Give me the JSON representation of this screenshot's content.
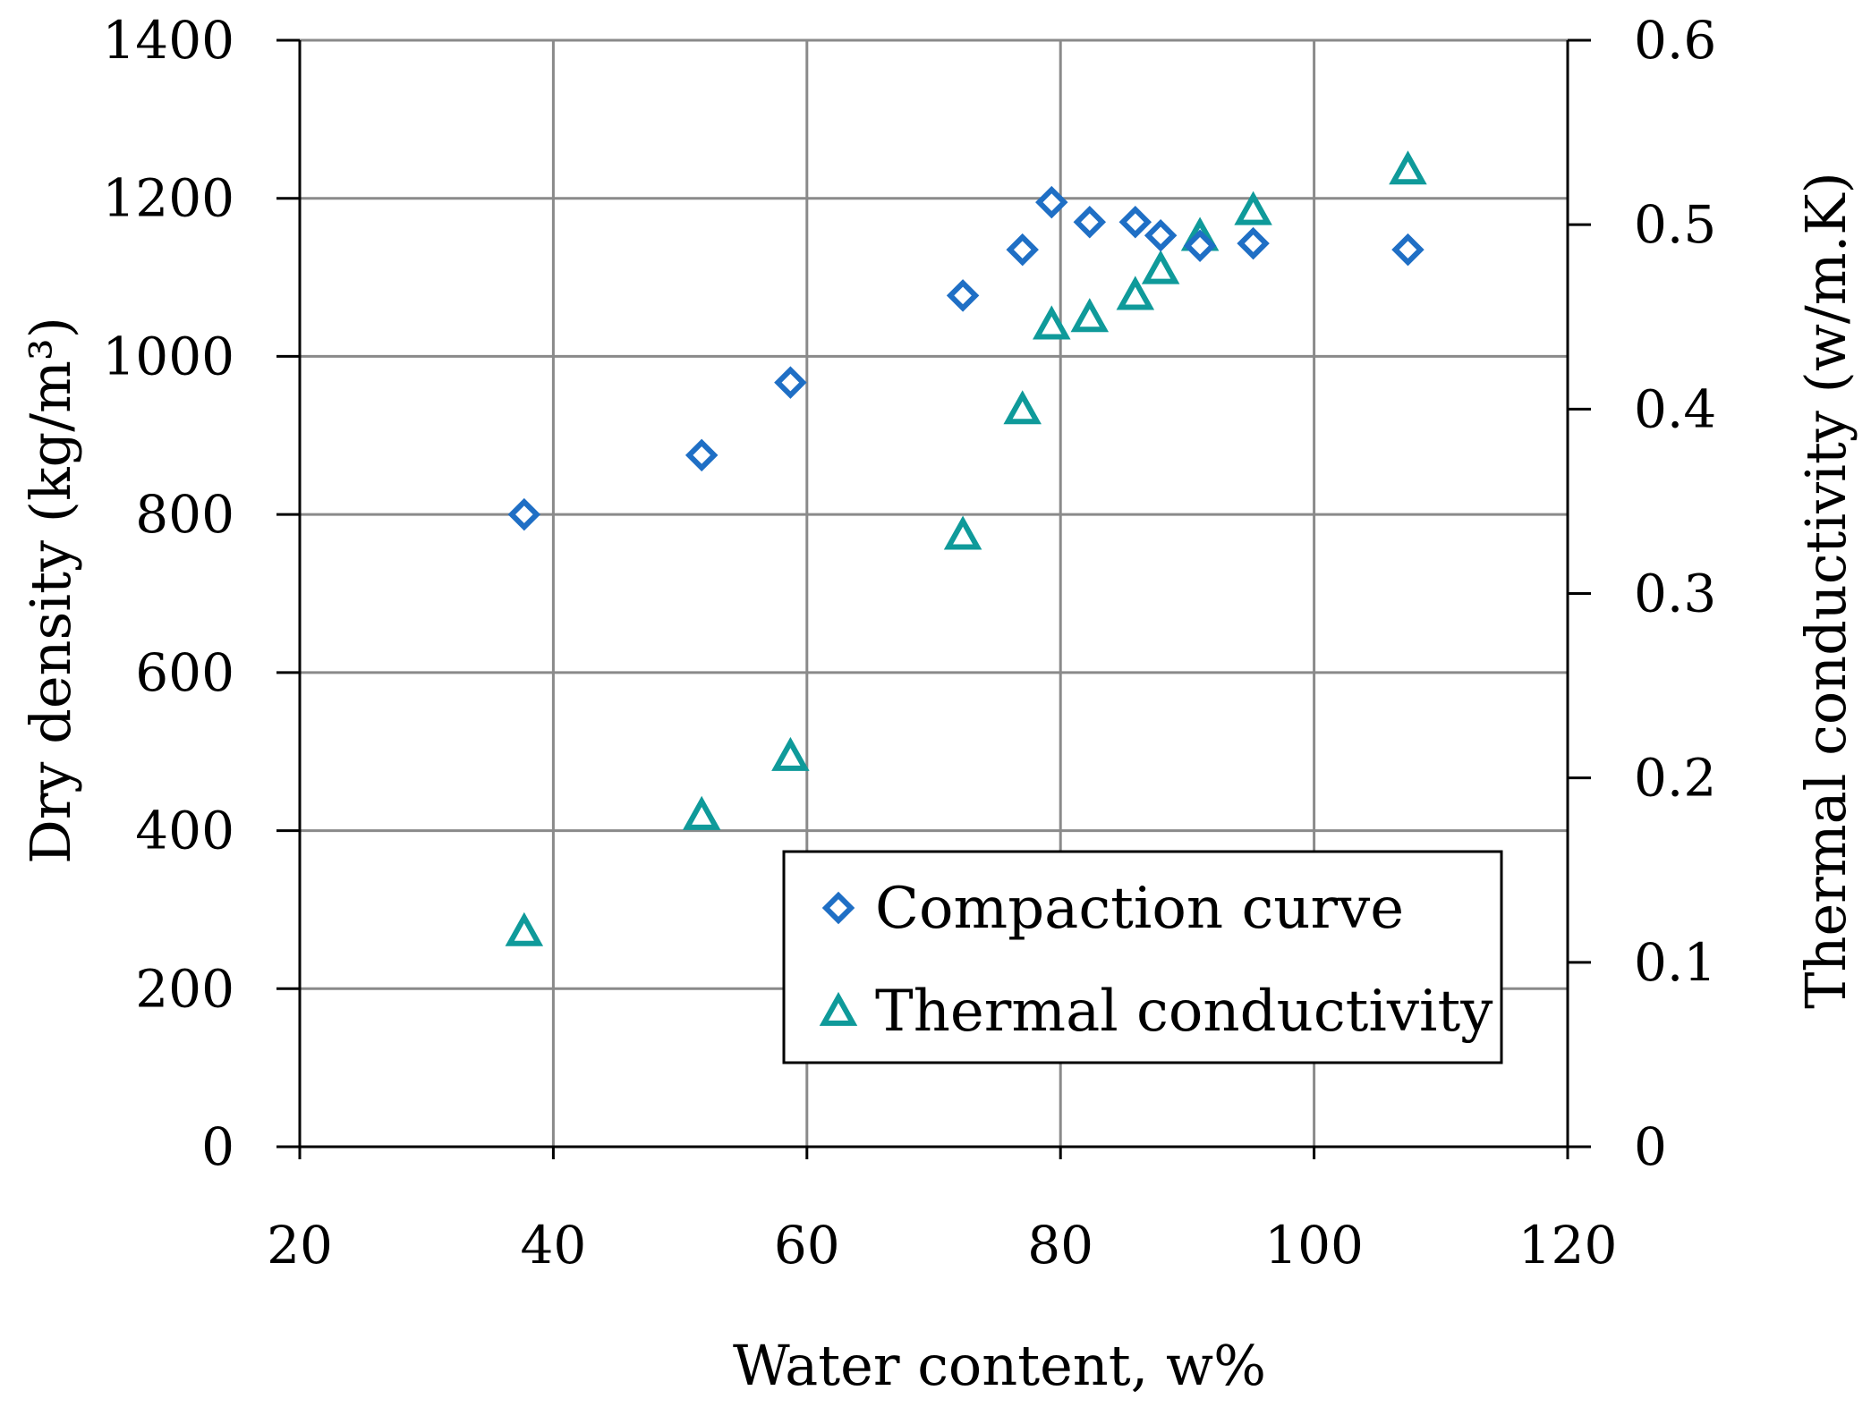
{
  "chart_data": {
    "type": "scatter",
    "xlabel": "Water content, w%",
    "ylabel_left": "Dry density (kg/m³)",
    "ylabel_right": "Thermal conductivity (w/m.K)",
    "xlim": [
      20,
      120
    ],
    "ylim_left": [
      0,
      1400
    ],
    "ylim_right": [
      0,
      0.6
    ],
    "x_ticks": [
      20,
      40,
      60,
      80,
      100,
      120
    ],
    "y_left_ticks": [
      0,
      200,
      400,
      600,
      800,
      1000,
      1200,
      1400
    ],
    "y_right_ticks": [
      0,
      0.1,
      0.2,
      0.3,
      0.4,
      0.5,
      0.6
    ],
    "x_tick_labels": [
      "20",
      "40",
      "60",
      "80",
      "100",
      "120"
    ],
    "y_left_tick_labels": [
      "0",
      "200",
      "400",
      "600",
      "800",
      "1000",
      "1200",
      "1400"
    ],
    "y_right_tick_labels": [
      "0",
      "0.1",
      "0.2",
      "0.3",
      "0.4",
      "0.5",
      "0.6"
    ],
    "grid": true,
    "legend_position": "lower-right",
    "series": [
      {
        "name": "Compaction curve",
        "axis": "left",
        "marker": "diamond",
        "color": "#1f6fc5",
        "x": [
          37.7,
          51.7,
          58.7,
          72.3,
          77.0,
          79.3,
          82.3,
          85.9,
          87.9,
          91.0,
          95.2,
          107.4
        ],
        "y": [
          800,
          875,
          967,
          1077,
          1135,
          1195,
          1170,
          1170,
          1153,
          1140,
          1143,
          1135
        ]
      },
      {
        "name": "Thermal conductivity",
        "axis": "right",
        "marker": "triangle",
        "color": "#0f9a9a",
        "x": [
          37.7,
          51.7,
          58.7,
          72.3,
          77.0,
          79.3,
          82.3,
          85.9,
          87.9,
          91.0,
          95.2,
          107.4
        ],
        "y": [
          0.116,
          0.179,
          0.211,
          0.331,
          0.399,
          0.445,
          0.449,
          0.461,
          0.475,
          0.493,
          0.507,
          0.529
        ]
      }
    ]
  }
}
